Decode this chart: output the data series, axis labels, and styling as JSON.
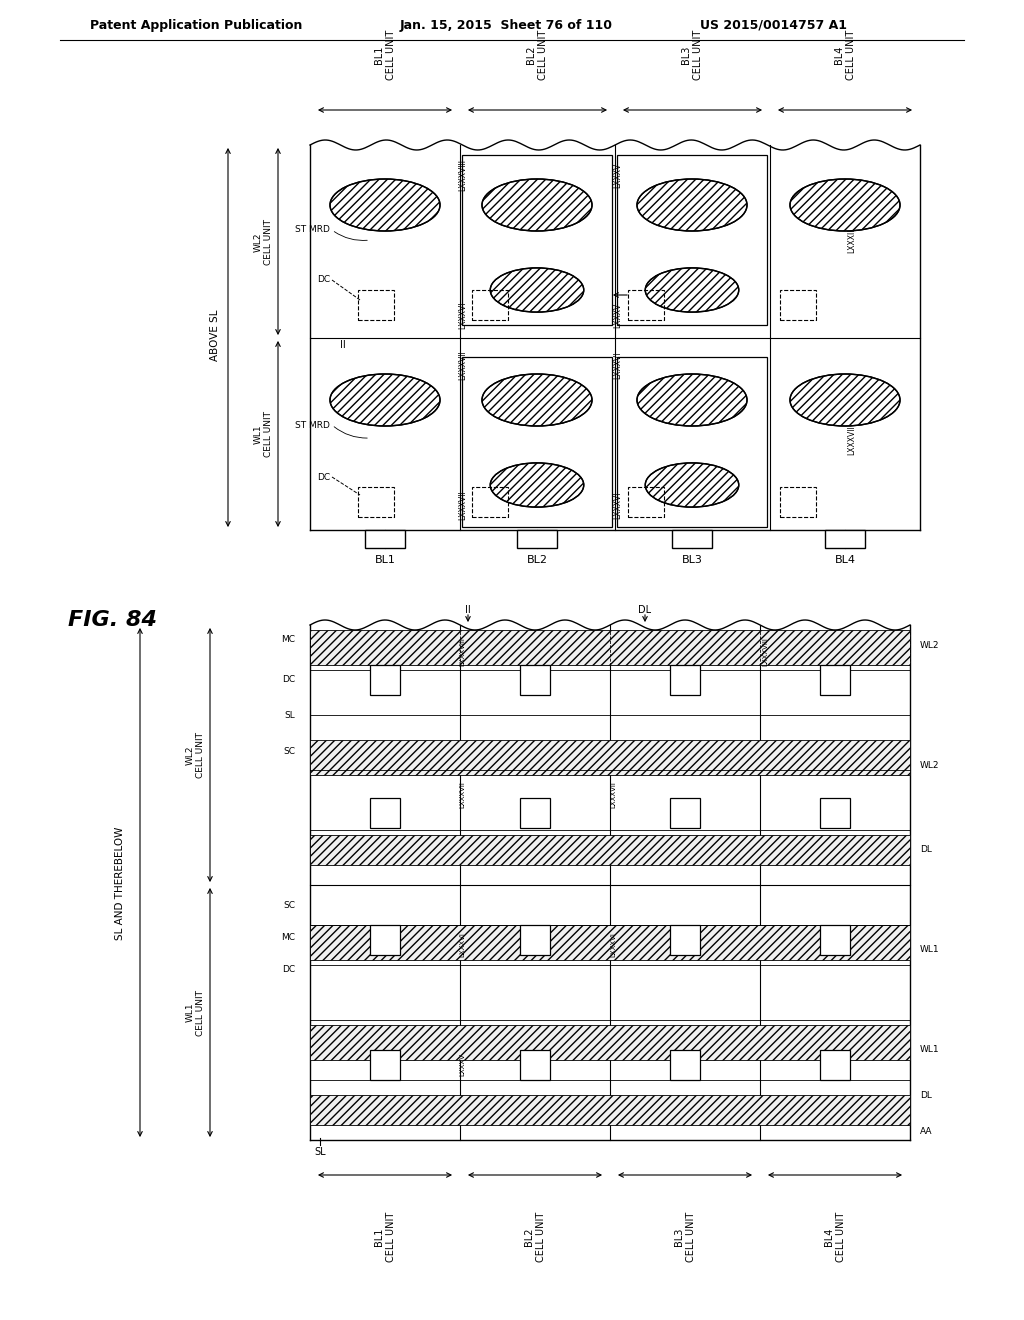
{
  "bg_color": "#ffffff",
  "header_left": "Patent Application Publication",
  "header_mid": "Jan. 15, 2015  Sheet 76 of 110",
  "header_right": "US 2015/0014757 A1",
  "fig_label": "FIG. 84"
}
